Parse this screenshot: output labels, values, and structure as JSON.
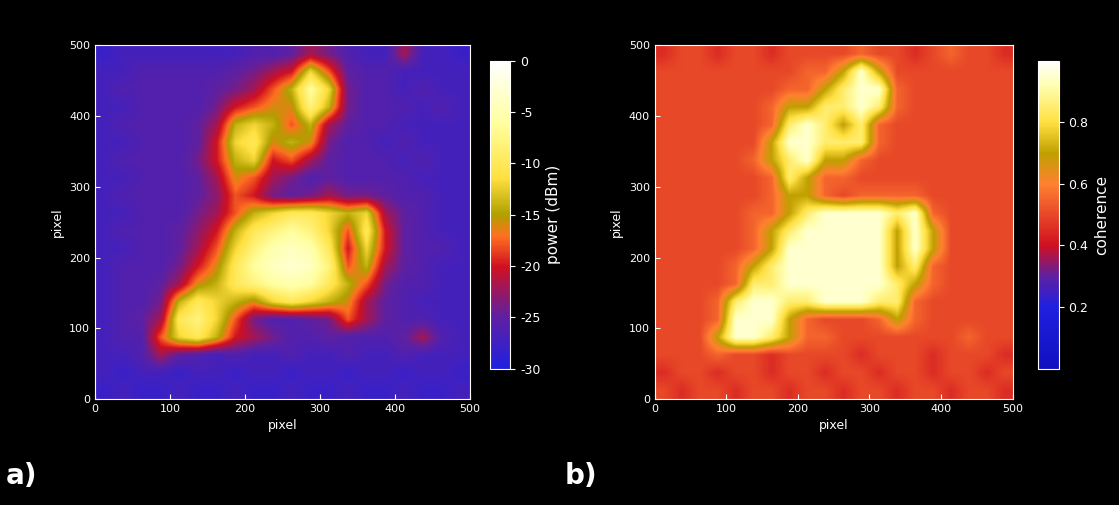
{
  "chart_data": [
    {
      "type": "heatmap",
      "annotations": [
        "a)"
      ],
      "x_label": "pixel",
      "y_label": "pixel",
      "xlim": [
        0,
        500
      ],
      "ylim": [
        0,
        500
      ],
      "xticks": [
        0,
        100,
        200,
        300,
        400,
        500
      ],
      "yticks": [
        0,
        100,
        200,
        300,
        400,
        500
      ],
      "colorbar_label": "power (dBm)",
      "colorbar_range": [
        -30,
        0
      ],
      "colorbar_ticks": [
        0,
        -5,
        -10,
        -15,
        -20,
        -25,
        -30
      ],
      "cells": [
        [
          -28,
          -27,
          -28,
          -28,
          -27,
          -28,
          -28,
          -27,
          -28,
          -28,
          -27,
          -28,
          -28,
          -27,
          -28,
          -28,
          -27,
          -28,
          -28,
          -27
        ],
        [
          -27,
          -28,
          -27,
          -27,
          -28,
          -27,
          -27,
          -28,
          -27,
          -27,
          -28,
          -27,
          -27,
          -28,
          -27,
          -27,
          -28,
          -27,
          -27,
          -28
        ],
        [
          -27,
          -27,
          -26,
          -22,
          -25,
          -26,
          -27,
          -26,
          -27,
          -27,
          -26,
          -27,
          -27,
          -26,
          -27,
          -27,
          -26,
          -27,
          -27,
          -27
        ],
        [
          -27,
          -26,
          -26,
          -18,
          -12,
          -10,
          -14,
          -20,
          -22,
          -24,
          -26,
          -26,
          -25,
          -26,
          -26,
          -26,
          -25,
          -22,
          -26,
          -27
        ],
        [
          -27,
          -26,
          -25,
          -22,
          -10,
          -8,
          -12,
          -18,
          -24,
          -26,
          -26,
          -25,
          -24,
          -18,
          -22,
          -25,
          -26,
          -26,
          -27,
          -27
        ],
        [
          -27,
          -26,
          -26,
          -24,
          -14,
          -10,
          -12,
          -14,
          -16,
          -12,
          -10,
          -12,
          -14,
          -16,
          -22,
          -25,
          -26,
          -27,
          -27,
          -27
        ],
        [
          -27,
          -26,
          -26,
          -25,
          -22,
          -16,
          -14,
          -10,
          -8,
          -6,
          -5,
          -6,
          -10,
          -14,
          -18,
          -24,
          -26,
          -26,
          -27,
          -27
        ],
        [
          -27,
          -26,
          -26,
          -26,
          -24,
          -20,
          -16,
          -10,
          -6,
          -4,
          -3,
          -4,
          -8,
          -18,
          -14,
          -22,
          -25,
          -26,
          -27,
          -27
        ],
        [
          -27,
          -27,
          -26,
          -26,
          -25,
          -22,
          -18,
          -12,
          -8,
          -5,
          -4,
          -5,
          -10,
          -20,
          -12,
          -20,
          -25,
          -26,
          -26,
          -27
        ],
        [
          -27,
          -26,
          -26,
          -26,
          -25,
          -23,
          -20,
          -14,
          -10,
          -8,
          -6,
          -8,
          -12,
          -18,
          -10,
          -20,
          -25,
          -26,
          -27,
          -27
        ],
        [
          -27,
          -27,
          -26,
          -26,
          -26,
          -24,
          -22,
          -18,
          -14,
          -12,
          -10,
          -10,
          -12,
          -14,
          -12,
          -22,
          -25,
          -26,
          -27,
          -27
        ],
        [
          -27,
          -26,
          -26,
          -26,
          -26,
          -25,
          -23,
          -18,
          -20,
          -24,
          -25,
          -24,
          -22,
          -24,
          -24,
          -25,
          -26,
          -26,
          -27,
          -27
        ],
        [
          -27,
          -27,
          -26,
          -26,
          -26,
          -25,
          -22,
          -16,
          -18,
          -22,
          -24,
          -26,
          -25,
          -26,
          -26,
          -26,
          -26,
          -27,
          -27,
          -27
        ],
        [
          -27,
          -26,
          -26,
          -26,
          -26,
          -24,
          -20,
          -14,
          -12,
          -20,
          -18,
          -22,
          -25,
          -26,
          -26,
          -26,
          -27,
          -26,
          -27,
          -27
        ],
        [
          -27,
          -27,
          -26,
          -26,
          -26,
          -25,
          -20,
          -12,
          -10,
          -16,
          -14,
          -16,
          -24,
          -26,
          -26,
          -27,
          -26,
          -27,
          -27,
          -27
        ],
        [
          -27,
          -26,
          -26,
          -26,
          -26,
          -25,
          -22,
          -14,
          -12,
          -14,
          -18,
          -14,
          -22,
          -25,
          -26,
          -26,
          -27,
          -27,
          -27,
          -27
        ],
        [
          -27,
          -27,
          -26,
          -26,
          -26,
          -26,
          -24,
          -20,
          -18,
          -16,
          -16,
          -8,
          -14,
          -24,
          -26,
          -26,
          -26,
          -27,
          -26,
          -27
        ],
        [
          -27,
          -26,
          -26,
          -26,
          -26,
          -26,
          -25,
          -24,
          -22,
          -18,
          -14,
          -6,
          -12,
          -24,
          -26,
          -26,
          -27,
          -26,
          -27,
          -27
        ],
        [
          -27,
          -27,
          -26,
          -26,
          -26,
          -26,
          -26,
          -25,
          -24,
          -22,
          -20,
          -12,
          -18,
          -25,
          -26,
          -26,
          -27,
          -27,
          -27,
          -27
        ],
        [
          -28,
          -27,
          -27,
          -27,
          -27,
          -27,
          -27,
          -27,
          -26,
          -26,
          -25,
          -22,
          -24,
          -26,
          -27,
          -27,
          -22,
          -27,
          -27,
          -28
        ]
      ]
    },
    {
      "type": "heatmap",
      "annotations": [
        "b)"
      ],
      "x_label": "pixel",
      "y_label": "pixel",
      "xlim": [
        0,
        500
      ],
      "ylim": [
        0,
        500
      ],
      "xticks": [
        0,
        100,
        200,
        300,
        400,
        500
      ],
      "yticks": [
        0,
        100,
        200,
        300,
        400,
        500
      ],
      "colorbar_label": "coherence",
      "colorbar_range": [
        0,
        1
      ],
      "colorbar_ticks": [
        0.2,
        0.4,
        0.6,
        0.8
      ],
      "cells": [
        [
          0.5,
          0.45,
          0.5,
          0.5,
          0.45,
          0.5,
          0.5,
          0.45,
          0.5,
          0.5,
          0.45,
          0.5,
          0.5,
          0.45,
          0.5,
          0.5,
          0.45,
          0.5,
          0.5,
          0.45
        ],
        [
          0.45,
          0.5,
          0.5,
          0.45,
          0.5,
          0.5,
          0.45,
          0.5,
          0.5,
          0.45,
          0.5,
          0.5,
          0.45,
          0.5,
          0.5,
          0.45,
          0.5,
          0.5,
          0.45,
          0.5
        ],
        [
          0.5,
          0.5,
          0.5,
          0.55,
          0.5,
          0.5,
          0.45,
          0.5,
          0.5,
          0.5,
          0.5,
          0.45,
          0.5,
          0.5,
          0.5,
          0.45,
          0.5,
          0.5,
          0.5,
          0.45
        ],
        [
          0.5,
          0.5,
          0.5,
          0.7,
          0.95,
          0.95,
          0.85,
          0.7,
          0.55,
          0.55,
          0.5,
          0.5,
          0.5,
          0.5,
          0.5,
          0.5,
          0.5,
          0.55,
          0.5,
          0.5
        ],
        [
          0.5,
          0.5,
          0.5,
          0.55,
          0.95,
          0.95,
          0.95,
          0.7,
          0.55,
          0.5,
          0.5,
          0.5,
          0.55,
          0.7,
          0.55,
          0.5,
          0.5,
          0.5,
          0.5,
          0.5
        ],
        [
          0.5,
          0.5,
          0.5,
          0.55,
          0.85,
          0.95,
          0.95,
          0.85,
          0.85,
          0.95,
          0.95,
          0.95,
          0.85,
          0.85,
          0.55,
          0.5,
          0.5,
          0.5,
          0.5,
          0.5
        ],
        [
          0.5,
          0.5,
          0.5,
          0.5,
          0.55,
          0.85,
          0.85,
          0.95,
          0.95,
          0.95,
          0.95,
          0.95,
          0.95,
          0.85,
          0.7,
          0.55,
          0.5,
          0.5,
          0.5,
          0.5
        ],
        [
          0.5,
          0.5,
          0.5,
          0.5,
          0.55,
          0.7,
          0.85,
          0.95,
          0.95,
          0.95,
          0.95,
          0.95,
          0.95,
          0.7,
          0.85,
          0.55,
          0.5,
          0.5,
          0.5,
          0.5
        ],
        [
          0.5,
          0.5,
          0.5,
          0.5,
          0.5,
          0.55,
          0.7,
          0.95,
          0.95,
          0.95,
          0.95,
          0.95,
          0.95,
          0.7,
          0.95,
          0.7,
          0.5,
          0.5,
          0.5,
          0.5
        ],
        [
          0.5,
          0.5,
          0.5,
          0.5,
          0.5,
          0.55,
          0.7,
          0.85,
          0.95,
          0.95,
          0.95,
          0.95,
          0.95,
          0.7,
          0.95,
          0.7,
          0.5,
          0.5,
          0.5,
          0.5
        ],
        [
          0.5,
          0.5,
          0.5,
          0.5,
          0.5,
          0.55,
          0.55,
          0.7,
          0.85,
          0.95,
          0.95,
          0.95,
          0.95,
          0.85,
          0.95,
          0.55,
          0.5,
          0.5,
          0.5,
          0.5
        ],
        [
          0.5,
          0.5,
          0.5,
          0.5,
          0.5,
          0.5,
          0.55,
          0.7,
          0.7,
          0.55,
          0.5,
          0.55,
          0.55,
          0.55,
          0.55,
          0.5,
          0.5,
          0.5,
          0.5,
          0.5
        ],
        [
          0.5,
          0.5,
          0.5,
          0.5,
          0.5,
          0.5,
          0.55,
          0.85,
          0.7,
          0.55,
          0.55,
          0.5,
          0.5,
          0.5,
          0.5,
          0.5,
          0.5,
          0.5,
          0.5,
          0.5
        ],
        [
          0.5,
          0.5,
          0.5,
          0.5,
          0.5,
          0.55,
          0.7,
          0.85,
          0.95,
          0.7,
          0.7,
          0.55,
          0.5,
          0.5,
          0.5,
          0.5,
          0.5,
          0.5,
          0.5,
          0.5
        ],
        [
          0.5,
          0.5,
          0.5,
          0.5,
          0.5,
          0.5,
          0.7,
          0.95,
          0.95,
          0.85,
          0.85,
          0.85,
          0.55,
          0.5,
          0.5,
          0.5,
          0.5,
          0.5,
          0.5,
          0.5
        ],
        [
          0.5,
          0.5,
          0.5,
          0.5,
          0.5,
          0.5,
          0.55,
          0.85,
          0.95,
          0.85,
          0.7,
          0.85,
          0.55,
          0.5,
          0.5,
          0.5,
          0.5,
          0.5,
          0.5,
          0.5
        ],
        [
          0.5,
          0.5,
          0.5,
          0.5,
          0.5,
          0.5,
          0.55,
          0.7,
          0.7,
          0.85,
          0.85,
          0.95,
          0.85,
          0.55,
          0.5,
          0.5,
          0.5,
          0.5,
          0.5,
          0.5
        ],
        [
          0.5,
          0.5,
          0.5,
          0.5,
          0.5,
          0.5,
          0.5,
          0.55,
          0.55,
          0.7,
          0.85,
          0.95,
          0.95,
          0.55,
          0.5,
          0.5,
          0.5,
          0.5,
          0.5,
          0.5
        ],
        [
          0.5,
          0.5,
          0.5,
          0.5,
          0.5,
          0.5,
          0.5,
          0.5,
          0.55,
          0.55,
          0.7,
          0.95,
          0.7,
          0.5,
          0.5,
          0.5,
          0.5,
          0.5,
          0.5,
          0.5
        ],
        [
          0.45,
          0.5,
          0.5,
          0.45,
          0.5,
          0.5,
          0.45,
          0.5,
          0.5,
          0.5,
          0.5,
          0.55,
          0.5,
          0.5,
          0.45,
          0.5,
          0.55,
          0.5,
          0.5,
          0.45
        ]
      ]
    }
  ]
}
